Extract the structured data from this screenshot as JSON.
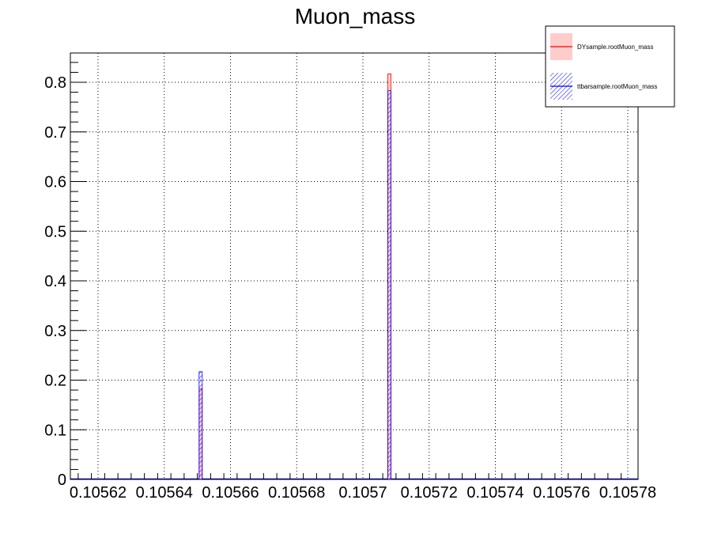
{
  "chart_data": {
    "type": "bar",
    "title": "Muon_mass",
    "xlabel": "",
    "ylabel": "",
    "xlim": [
      0.10561,
      0.10578
    ],
    "ylim": [
      0,
      0.86
    ],
    "x_ticks": [
      0.10562,
      0.10564,
      0.10566,
      0.10568,
      0.1057,
      0.10572,
      0.10574,
      0.10576,
      0.10578
    ],
    "x_tick_labels": [
      "0.10562",
      "0.10564",
      "0.10566",
      "0.10568",
      "0.1057",
      "0.10572",
      "0.10574",
      "0.10576",
      "0.10578"
    ],
    "y_ticks": [
      0,
      0.1,
      0.2,
      0.3,
      0.4,
      0.5,
      0.6,
      0.7,
      0.8
    ],
    "y_tick_labels": [
      "0",
      "0.1",
      "0.2",
      "0.3",
      "0.4",
      "0.5",
      "0.6",
      "0.7",
      "0.8"
    ],
    "grid": true,
    "legend_position": "top-right",
    "series": [
      {
        "name": "DYsample.rootMuon_mass",
        "color": "#ff0000",
        "fill": "#ffcccc",
        "style": "solid-fill",
        "bins": [
          {
            "x": 0.105651,
            "value": 0.183
          },
          {
            "x": 0.105708,
            "value": 0.817
          }
        ]
      },
      {
        "name": "ttbarsample.rootMuon_mass",
        "color": "#0000ff",
        "fill": "#0000ff",
        "style": "hatched",
        "bins": [
          {
            "x": 0.105651,
            "value": 0.217
          },
          {
            "x": 0.105708,
            "value": 0.783
          }
        ]
      }
    ],
    "bin_width": 8e-07
  }
}
